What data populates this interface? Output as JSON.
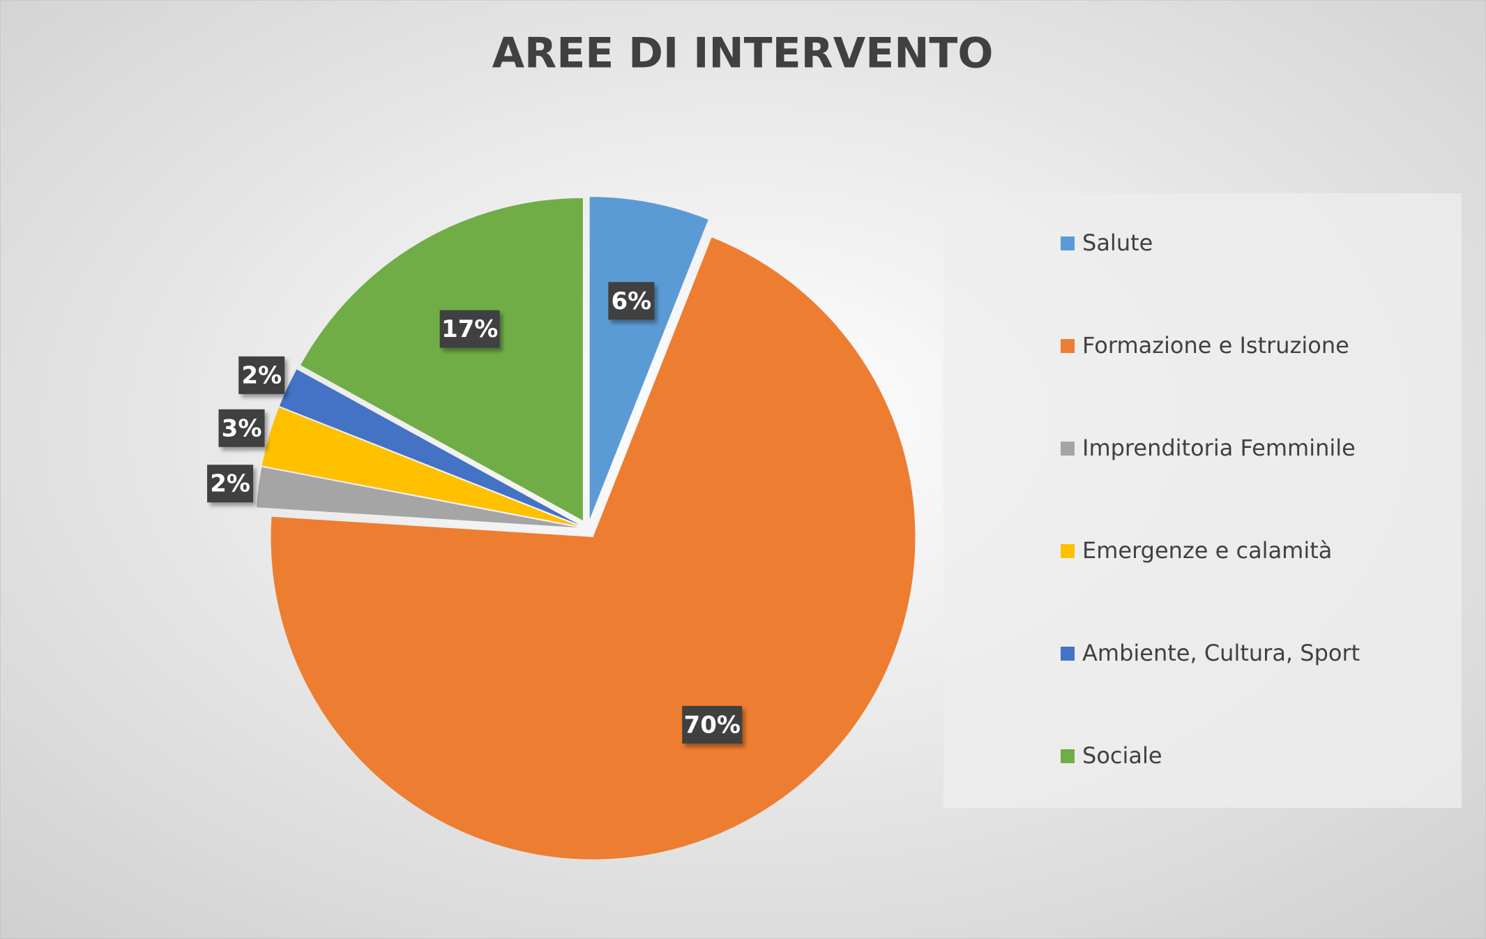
{
  "chart_data": {
    "type": "pie",
    "title": "AREE DI INTERVENTO",
    "categories": [
      "Salute",
      "Formazione e Istruzione",
      "Imprenditoria Femminile",
      "Emergenze e calamità",
      "Ambiente, Cultura, Sport",
      "Sociale"
    ],
    "values": [
      6,
      70,
      2,
      3,
      2,
      17
    ],
    "value_labels": [
      "6%",
      "70%",
      "2%",
      "3%",
      "2%",
      "17%"
    ],
    "colors": [
      "#5b9bd5",
      "#ed7d31",
      "#a5a5a5",
      "#ffc000",
      "#4472c4",
      "#70ad47"
    ],
    "legend": "right"
  }
}
